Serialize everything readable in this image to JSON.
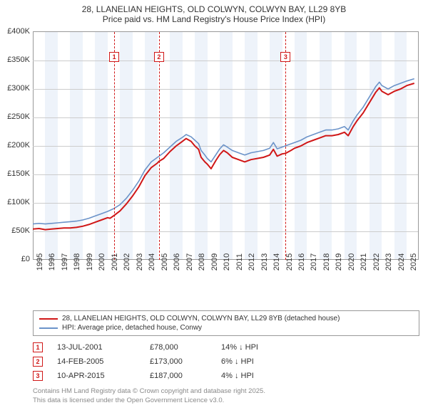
{
  "title": {
    "line1": "28, LLANELIAN HEIGHTS, OLD COLWYN, COLWYN BAY, LL29 8YB",
    "line2": "Price paid vs. HM Land Registry's House Price Index (HPI)"
  },
  "chart": {
    "type": "line",
    "background_color": "#ffffff",
    "band_color": "#eef3fa",
    "grid_color": "#cccccc",
    "axis_color": "#999999",
    "title_fontsize": 12,
    "tick_fontsize": 11,
    "x": {
      "min": 1995,
      "max": 2025.9,
      "ticks": [
        1995,
        1996,
        1997,
        1998,
        1999,
        2000,
        2001,
        2002,
        2003,
        2004,
        2005,
        2006,
        2007,
        2008,
        2009,
        2010,
        2011,
        2012,
        2013,
        2014,
        2015,
        2016,
        2017,
        2018,
        2019,
        2020,
        2021,
        2022,
        2023,
        2024,
        2025
      ]
    },
    "y": {
      "min": 0,
      "max": 400000,
      "ticks": [
        0,
        50000,
        100000,
        150000,
        200000,
        250000,
        300000,
        350000,
        400000
      ],
      "tick_labels": [
        "£0",
        "£50K",
        "£100K",
        "£150K",
        "£200K",
        "£250K",
        "£300K",
        "£350K",
        "£400K"
      ]
    },
    "series": [
      {
        "name": "property",
        "label": "28, LLANELIAN HEIGHTS, OLD COLWYN, COLWYN BAY, LL29 8YB (detached house)",
        "color": "#d01717",
        "line_width": 2,
        "points": [
          [
            1995.0,
            54000
          ],
          [
            1995.5,
            55000
          ],
          [
            1996.0,
            53000
          ],
          [
            1996.5,
            54000
          ],
          [
            1997.0,
            55000
          ],
          [
            1997.5,
            56000
          ],
          [
            1998.0,
            56000
          ],
          [
            1998.5,
            57000
          ],
          [
            1999.0,
            59000
          ],
          [
            1999.5,
            62000
          ],
          [
            2000.0,
            66000
          ],
          [
            2000.5,
            70000
          ],
          [
            2001.0,
            74000
          ],
          [
            2001.2,
            73000
          ],
          [
            2001.53,
            78000
          ],
          [
            2002.0,
            86000
          ],
          [
            2002.5,
            98000
          ],
          [
            2003.0,
            112000
          ],
          [
            2003.5,
            128000
          ],
          [
            2004.0,
            148000
          ],
          [
            2004.5,
            162000
          ],
          [
            2005.0,
            170000
          ],
          [
            2005.12,
            173000
          ],
          [
            2005.5,
            178000
          ],
          [
            2006.0,
            190000
          ],
          [
            2006.5,
            200000
          ],
          [
            2007.0,
            208000
          ],
          [
            2007.3,
            213000
          ],
          [
            2007.7,
            208000
          ],
          [
            2008.0,
            200000
          ],
          [
            2008.3,
            194000
          ],
          [
            2008.5,
            180000
          ],
          [
            2008.8,
            172000
          ],
          [
            2009.0,
            168000
          ],
          [
            2009.3,
            160000
          ],
          [
            2009.7,
            175000
          ],
          [
            2010.0,
            185000
          ],
          [
            2010.3,
            192000
          ],
          [
            2010.6,
            188000
          ],
          [
            2011.0,
            180000
          ],
          [
            2011.5,
            176000
          ],
          [
            2012.0,
            172000
          ],
          [
            2012.5,
            176000
          ],
          [
            2013.0,
            178000
          ],
          [
            2013.5,
            180000
          ],
          [
            2014.0,
            184000
          ],
          [
            2014.3,
            194000
          ],
          [
            2014.6,
            182000
          ],
          [
            2015.0,
            186000
          ],
          [
            2015.28,
            187000
          ],
          [
            2015.7,
            192000
          ],
          [
            2016.0,
            196000
          ],
          [
            2016.5,
            200000
          ],
          [
            2017.0,
            206000
          ],
          [
            2017.5,
            210000
          ],
          [
            2018.0,
            214000
          ],
          [
            2018.5,
            218000
          ],
          [
            2019.0,
            218000
          ],
          [
            2019.5,
            220000
          ],
          [
            2020.0,
            224000
          ],
          [
            2020.3,
            218000
          ],
          [
            2020.7,
            234000
          ],
          [
            2021.0,
            244000
          ],
          [
            2021.5,
            258000
          ],
          [
            2022.0,
            276000
          ],
          [
            2022.5,
            294000
          ],
          [
            2022.8,
            302000
          ],
          [
            2023.0,
            296000
          ],
          [
            2023.5,
            290000
          ],
          [
            2024.0,
            296000
          ],
          [
            2024.5,
            300000
          ],
          [
            2025.0,
            306000
          ],
          [
            2025.6,
            310000
          ]
        ]
      },
      {
        "name": "hpi",
        "label": "HPI: Average price, detached house, Conwy",
        "color": "#6b93c9",
        "line_width": 1.6,
        "points": [
          [
            1995.0,
            63000
          ],
          [
            1995.5,
            64000
          ],
          [
            1996.0,
            63000
          ],
          [
            1996.5,
            64000
          ],
          [
            1997.0,
            65000
          ],
          [
            1997.5,
            66000
          ],
          [
            1998.0,
            67000
          ],
          [
            1998.5,
            68000
          ],
          [
            1999.0,
            70000
          ],
          [
            1999.5,
            73000
          ],
          [
            2000.0,
            77000
          ],
          [
            2000.5,
            81000
          ],
          [
            2001.0,
            85000
          ],
          [
            2001.5,
            90000
          ],
          [
            2002.0,
            97000
          ],
          [
            2002.5,
            108000
          ],
          [
            2003.0,
            122000
          ],
          [
            2003.5,
            138000
          ],
          [
            2004.0,
            158000
          ],
          [
            2004.5,
            172000
          ],
          [
            2005.0,
            180000
          ],
          [
            2005.5,
            188000
          ],
          [
            2006.0,
            198000
          ],
          [
            2006.5,
            208000
          ],
          [
            2007.0,
            215000
          ],
          [
            2007.3,
            220000
          ],
          [
            2007.7,
            216000
          ],
          [
            2008.0,
            210000
          ],
          [
            2008.3,
            204000
          ],
          [
            2008.5,
            192000
          ],
          [
            2008.8,
            184000
          ],
          [
            2009.0,
            178000
          ],
          [
            2009.3,
            172000
          ],
          [
            2009.7,
            185000
          ],
          [
            2010.0,
            195000
          ],
          [
            2010.3,
            202000
          ],
          [
            2010.6,
            198000
          ],
          [
            2011.0,
            192000
          ],
          [
            2011.5,
            188000
          ],
          [
            2012.0,
            184000
          ],
          [
            2012.5,
            188000
          ],
          [
            2013.0,
            190000
          ],
          [
            2013.5,
            192000
          ],
          [
            2014.0,
            196000
          ],
          [
            2014.3,
            206000
          ],
          [
            2014.6,
            195000
          ],
          [
            2015.0,
            198000
          ],
          [
            2015.5,
            202000
          ],
          [
            2016.0,
            206000
          ],
          [
            2016.5,
            210000
          ],
          [
            2017.0,
            216000
          ],
          [
            2017.5,
            220000
          ],
          [
            2018.0,
            224000
          ],
          [
            2018.5,
            228000
          ],
          [
            2019.0,
            228000
          ],
          [
            2019.5,
            230000
          ],
          [
            2020.0,
            234000
          ],
          [
            2020.3,
            228000
          ],
          [
            2020.7,
            244000
          ],
          [
            2021.0,
            254000
          ],
          [
            2021.5,
            268000
          ],
          [
            2022.0,
            286000
          ],
          [
            2022.5,
            304000
          ],
          [
            2022.8,
            312000
          ],
          [
            2023.0,
            306000
          ],
          [
            2023.5,
            300000
          ],
          [
            2024.0,
            306000
          ],
          [
            2024.5,
            310000
          ],
          [
            2025.0,
            314000
          ],
          [
            2025.6,
            318000
          ]
        ]
      }
    ],
    "markers": [
      {
        "n": "1",
        "x": 2001.53
      },
      {
        "n": "2",
        "x": 2005.12
      },
      {
        "n": "3",
        "x": 2015.28
      }
    ]
  },
  "legend": {
    "rows": [
      {
        "color": "#d01717",
        "label": "28, LLANELIAN HEIGHTS, OLD COLWYN, COLWYN BAY, LL29 8YB (detached house)"
      },
      {
        "color": "#6b93c9",
        "label": "HPI: Average price, detached house, Conwy"
      }
    ]
  },
  "sales": [
    {
      "n": "1",
      "date": "13-JUL-2001",
      "price": "£78,000",
      "diff": "14% ↓ HPI"
    },
    {
      "n": "2",
      "date": "14-FEB-2005",
      "price": "£173,000",
      "diff": "6% ↓ HPI"
    },
    {
      "n": "3",
      "date": "10-APR-2015",
      "price": "£187,000",
      "diff": "4% ↓ HPI"
    }
  ],
  "footer": {
    "line1": "Contains HM Land Registry data © Crown copyright and database right 2025.",
    "line2": "This data is licensed under the Open Government Licence v3.0."
  }
}
